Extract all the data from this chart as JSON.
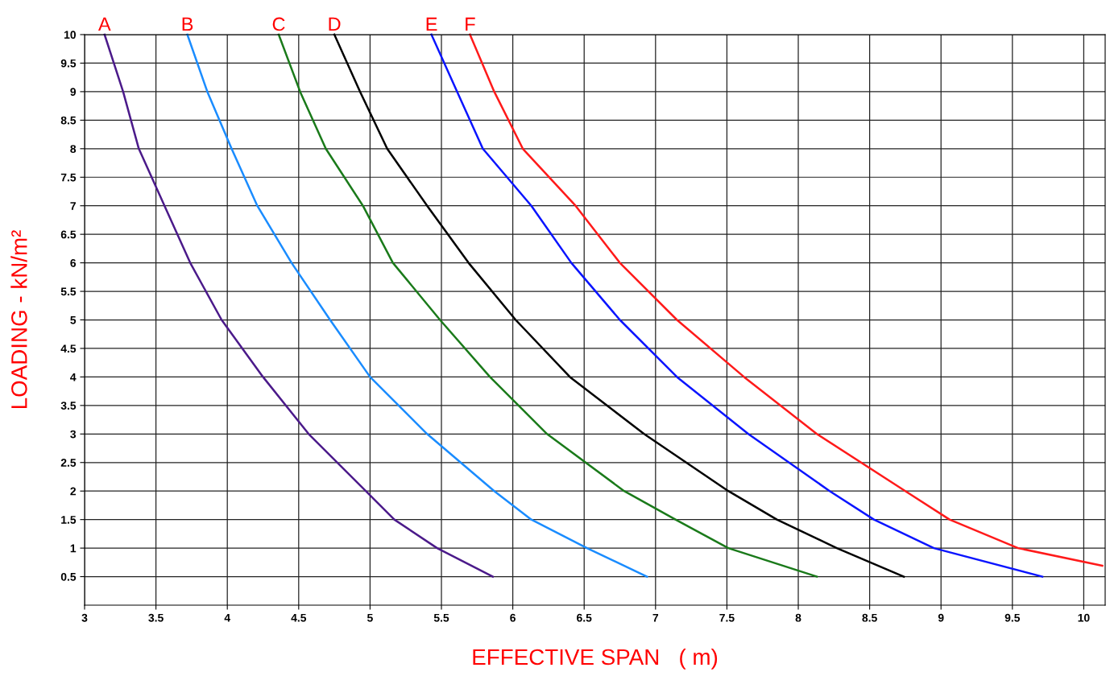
{
  "chart_data": {
    "type": "line",
    "xlabel": "EFFECTIVE SPAN   ( m)",
    "ylabel": "LOADING - kN/m²",
    "xlim": [
      3,
      10.15
    ],
    "ylim": [
      0,
      10
    ],
    "xticks": [
      3,
      3.5,
      4,
      4.5,
      5,
      5.5,
      6,
      6.5,
      7,
      7.5,
      8,
      8.5,
      9,
      9.5,
      10
    ],
    "yticks": [
      0.5,
      1,
      1.5,
      2,
      2.5,
      3,
      3.5,
      4,
      4.5,
      5,
      5.5,
      6,
      6.5,
      7,
      7.5,
      8,
      8.5,
      9,
      9.5,
      10
    ],
    "grid": true,
    "legend": false,
    "marker": "none",
    "line_style": "solid",
    "series": [
      {
        "name": "A",
        "color": "#4b1a8a",
        "x": [
          3.14,
          3.27,
          3.38,
          3.56,
          3.74,
          3.96,
          4.25,
          4.57,
          4.97,
          5.17,
          5.47,
          5.86
        ],
        "values": [
          10,
          9,
          8,
          7,
          6,
          5,
          4,
          3,
          2,
          1.5,
          1,
          0.5
        ]
      },
      {
        "name": "B",
        "color": "#1a8cff",
        "x": [
          3.72,
          3.86,
          4.03,
          4.21,
          4.45,
          4.72,
          5.0,
          5.4,
          5.87,
          6.13,
          6.52,
          6.94
        ],
        "values": [
          10,
          9,
          8,
          7,
          6,
          5,
          4,
          3,
          2,
          1.5,
          1,
          0.5
        ]
      },
      {
        "name": "C",
        "color": "#1a7a1a",
        "x": [
          4.36,
          4.51,
          4.69,
          4.95,
          5.16,
          5.49,
          5.84,
          6.24,
          6.78,
          7.14,
          7.51,
          8.13
        ],
        "values": [
          10,
          9,
          8,
          7,
          6,
          5,
          4,
          3,
          2,
          1.5,
          1,
          0.5
        ]
      },
      {
        "name": "D",
        "color": "#000000",
        "x": [
          4.75,
          4.93,
          5.12,
          5.4,
          5.69,
          6.02,
          6.4,
          6.92,
          7.51,
          7.85,
          8.27,
          8.74
        ],
        "values": [
          10,
          9,
          8,
          7,
          6,
          5,
          4,
          3,
          2,
          1.5,
          1,
          0.5
        ]
      },
      {
        "name": "E",
        "color": "#0a14ff",
        "x": [
          5.43,
          5.61,
          5.79,
          6.13,
          6.41,
          6.75,
          7.15,
          7.65,
          8.22,
          8.53,
          8.95,
          9.71
        ],
        "values": [
          10,
          9,
          8,
          7,
          6,
          5,
          4,
          3,
          2,
          1.5,
          1,
          0.5
        ]
      },
      {
        "name": "F",
        "color": "#ff1a1a",
        "x": [
          5.7,
          5.87,
          6.07,
          6.44,
          6.75,
          7.15,
          7.62,
          8.13,
          8.75,
          9.06,
          9.54,
          10.13
        ],
        "values": [
          10,
          9,
          8,
          7,
          6,
          5,
          4,
          3,
          2,
          1.5,
          1,
          0.69
        ]
      }
    ]
  }
}
